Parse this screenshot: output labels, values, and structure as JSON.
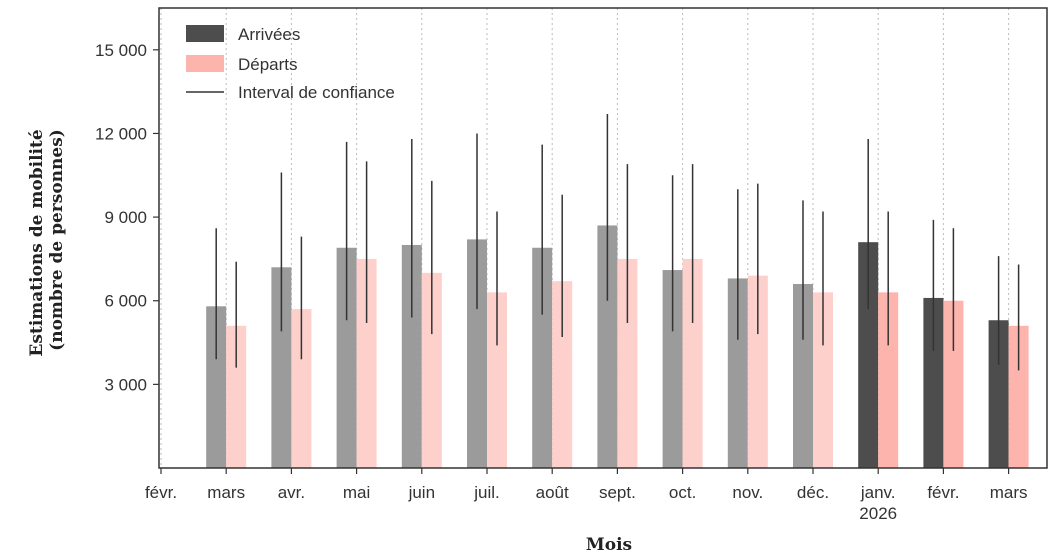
{
  "chart_data": {
    "type": "bar",
    "xlabel": "Mois",
    "ylabel_lines": [
      "Estimations de mobilité",
      "(nombre de personnes)"
    ],
    "ylim": [
      0,
      16500
    ],
    "yticks": [
      3000,
      6000,
      9000,
      12000,
      15000
    ],
    "ytick_labels": [
      "3 000",
      "6 000",
      "9 000",
      "12 000",
      "15 000"
    ],
    "x_tick_labels": [
      "févr.",
      "mars",
      "avr.",
      "mai",
      "juin",
      "juil.",
      "août",
      "sept.",
      "oct.",
      "nov.",
      "déc.",
      "janv. 2026",
      "févr.",
      "mars"
    ],
    "categories": [
      "mars",
      "avr.",
      "mai",
      "juin",
      "juil.",
      "août",
      "sept.",
      "oct.",
      "nov.",
      "déc.",
      "janv. 2026",
      "févr.",
      "mars"
    ],
    "grid": {
      "vertical": true,
      "horizontal": false
    },
    "legend_position": "top-left",
    "legend": [
      "Arrivées",
      "Départs",
      "Interval de confiance"
    ],
    "series": [
      {
        "name": "Arrivées",
        "values": [
          5800,
          7200,
          7900,
          8000,
          8200,
          7900,
          8700,
          7100,
          6800,
          6600,
          8100,
          6100,
          5300
        ],
        "ci_low": [
          3900,
          4900,
          5300,
          5400,
          5700,
          5500,
          6000,
          4900,
          4600,
          4600,
          5700,
          4200,
          3700
        ],
        "ci_high": [
          8600,
          10600,
          11700,
          11800,
          12000,
          11600,
          12700,
          10500,
          10000,
          9600,
          11800,
          8900,
          7600
        ]
      },
      {
        "name": "Départs",
        "values": [
          5100,
          5700,
          7500,
          7000,
          6300,
          6700,
          7500,
          7500,
          6900,
          6300,
          6300,
          6000,
          5100
        ],
        "ci_low": [
          3600,
          3900,
          5200,
          4800,
          4400,
          4700,
          5200,
          5200,
          4800,
          4400,
          4400,
          4200,
          3500
        ],
        "ci_high": [
          7400,
          8300,
          11000,
          10300,
          9200,
          9800,
          10900,
          10900,
          10200,
          9200,
          9200,
          8600,
          7300
        ]
      }
    ],
    "colors": {
      "arrivees_estimated": "#9b9b9b",
      "departs_estimated": "#fdd0cc",
      "arrivees_recent": "#4d4d4d",
      "departs_recent": "#fdb4ad",
      "legend_arrivees": "#4d4d4d",
      "legend_departs": "#fdb4ad",
      "error_bar": "#333333",
      "grid": "#bbbbbb"
    },
    "recent_from_index": 10
  }
}
